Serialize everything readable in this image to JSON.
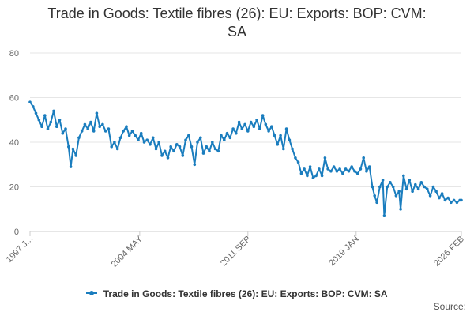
{
  "colors": {
    "series": "#1a7dbe",
    "grid": "#e6e6e6",
    "axis": "#cccccc"
  },
  "footer": {
    "source": "Source:"
  },
  "chart_data": {
    "type": "line",
    "title_lines": [
      "Trade in Goods: Textile fibres (26): EU: Exports: BOP: CVM:",
      "SA"
    ],
    "xlabel": "",
    "ylabel": "",
    "ylim": [
      0,
      80
    ],
    "yticks": [
      0,
      20,
      40,
      60,
      80
    ],
    "xlim": [
      1997.0,
      2026.1
    ],
    "xtick_labels": [
      {
        "pos": 1997.0,
        "label": "1997 J..."
      },
      {
        "pos": 2004.4,
        "label": "2004 MAY"
      },
      {
        "pos": 2011.7,
        "label": "2011 SEP"
      },
      {
        "pos": 2019.0,
        "label": "2019 JAN"
      },
      {
        "pos": 2026.1,
        "label": "2026 FEB"
      }
    ],
    "grid": true,
    "legend_position": "bottom",
    "series": [
      {
        "name": "Trade in Goods: Textile fibres (26): EU: Exports: BOP: CVM: SA",
        "points": [
          [
            1997.0,
            58
          ],
          [
            1997.2,
            56
          ],
          [
            1997.4,
            53
          ],
          [
            1997.6,
            50
          ],
          [
            1997.8,
            47
          ],
          [
            1998.0,
            52
          ],
          [
            1998.2,
            46
          ],
          [
            1998.4,
            49
          ],
          [
            1998.6,
            54
          ],
          [
            1998.8,
            47
          ],
          [
            1999.0,
            50
          ],
          [
            1999.2,
            44
          ],
          [
            1999.4,
            46
          ],
          [
            1999.6,
            38
          ],
          [
            1999.75,
            29
          ],
          [
            1999.9,
            37
          ],
          [
            2000.1,
            34
          ],
          [
            2000.3,
            42
          ],
          [
            2000.5,
            45
          ],
          [
            2000.7,
            48
          ],
          [
            2000.9,
            46
          ],
          [
            2001.1,
            49
          ],
          [
            2001.3,
            45
          ],
          [
            2001.5,
            53
          ],
          [
            2001.7,
            47
          ],
          [
            2001.9,
            48
          ],
          [
            2002.1,
            45
          ],
          [
            2002.3,
            46
          ],
          [
            2002.5,
            38
          ],
          [
            2002.7,
            40
          ],
          [
            2002.9,
            37
          ],
          [
            2003.1,
            42
          ],
          [
            2003.3,
            45
          ],
          [
            2003.5,
            47
          ],
          [
            2003.7,
            43
          ],
          [
            2003.9,
            45
          ],
          [
            2004.1,
            43
          ],
          [
            2004.3,
            41
          ],
          [
            2004.5,
            44
          ],
          [
            2004.7,
            40
          ],
          [
            2004.9,
            41
          ],
          [
            2005.1,
            39
          ],
          [
            2005.3,
            42
          ],
          [
            2005.5,
            37
          ],
          [
            2005.7,
            40
          ],
          [
            2005.9,
            34
          ],
          [
            2006.1,
            36
          ],
          [
            2006.3,
            33
          ],
          [
            2006.5,
            38
          ],
          [
            2006.7,
            36
          ],
          [
            2006.9,
            39
          ],
          [
            2007.1,
            38
          ],
          [
            2007.3,
            34
          ],
          [
            2007.5,
            41
          ],
          [
            2007.7,
            43
          ],
          [
            2007.9,
            38
          ],
          [
            2008.1,
            30
          ],
          [
            2008.3,
            40
          ],
          [
            2008.5,
            42
          ],
          [
            2008.7,
            35
          ],
          [
            2008.9,
            38
          ],
          [
            2009.1,
            36
          ],
          [
            2009.3,
            40
          ],
          [
            2009.5,
            37
          ],
          [
            2009.7,
            36
          ],
          [
            2009.9,
            43
          ],
          [
            2010.1,
            41
          ],
          [
            2010.3,
            44
          ],
          [
            2010.5,
            42
          ],
          [
            2010.7,
            46
          ],
          [
            2010.9,
            44
          ],
          [
            2011.1,
            49
          ],
          [
            2011.3,
            46
          ],
          [
            2011.5,
            48
          ],
          [
            2011.7,
            45
          ],
          [
            2011.9,
            49
          ],
          [
            2012.1,
            47
          ],
          [
            2012.3,
            50
          ],
          [
            2012.5,
            46
          ],
          [
            2012.7,
            52
          ],
          [
            2012.9,
            48
          ],
          [
            2013.1,
            45
          ],
          [
            2013.3,
            47
          ],
          [
            2013.5,
            43
          ],
          [
            2013.7,
            39
          ],
          [
            2013.9,
            43
          ],
          [
            2014.1,
            37
          ],
          [
            2014.3,
            46
          ],
          [
            2014.5,
            41
          ],
          [
            2014.7,
            37
          ],
          [
            2014.9,
            33
          ],
          [
            2015.1,
            31
          ],
          [
            2015.3,
            26
          ],
          [
            2015.5,
            28
          ],
          [
            2015.7,
            25
          ],
          [
            2015.9,
            29
          ],
          [
            2016.1,
            24
          ],
          [
            2016.3,
            25
          ],
          [
            2016.5,
            28
          ],
          [
            2016.7,
            25
          ],
          [
            2016.9,
            33
          ],
          [
            2017.1,
            28
          ],
          [
            2017.3,
            27
          ],
          [
            2017.5,
            29
          ],
          [
            2017.7,
            27
          ],
          [
            2017.9,
            28
          ],
          [
            2018.1,
            26
          ],
          [
            2018.3,
            28
          ],
          [
            2018.5,
            27
          ],
          [
            2018.7,
            29
          ],
          [
            2018.9,
            27
          ],
          [
            2019.1,
            26
          ],
          [
            2019.3,
            28
          ],
          [
            2019.5,
            33
          ],
          [
            2019.7,
            27
          ],
          [
            2019.9,
            29
          ],
          [
            2020.1,
            20
          ],
          [
            2020.25,
            16
          ],
          [
            2020.4,
            13
          ],
          [
            2020.6,
            20
          ],
          [
            2020.8,
            23
          ],
          [
            2020.9,
            7
          ],
          [
            2021.1,
            20
          ],
          [
            2021.3,
            22
          ],
          [
            2021.5,
            20
          ],
          [
            2021.7,
            16
          ],
          [
            2021.9,
            18
          ],
          [
            2022.0,
            10
          ],
          [
            2022.2,
            25
          ],
          [
            2022.4,
            19
          ],
          [
            2022.6,
            23
          ],
          [
            2022.8,
            18
          ],
          [
            2023.0,
            21
          ],
          [
            2023.2,
            19
          ],
          [
            2023.4,
            22
          ],
          [
            2023.6,
            20
          ],
          [
            2023.8,
            19
          ],
          [
            2024.0,
            16
          ],
          [
            2024.2,
            20
          ],
          [
            2024.4,
            18
          ],
          [
            2024.6,
            15
          ],
          [
            2024.8,
            17
          ],
          [
            2025.0,
            14
          ],
          [
            2025.2,
            15
          ],
          [
            2025.4,
            13
          ],
          [
            2025.6,
            14
          ],
          [
            2025.8,
            13
          ],
          [
            2026.0,
            14
          ],
          [
            2026.1,
            14
          ]
        ]
      }
    ]
  }
}
